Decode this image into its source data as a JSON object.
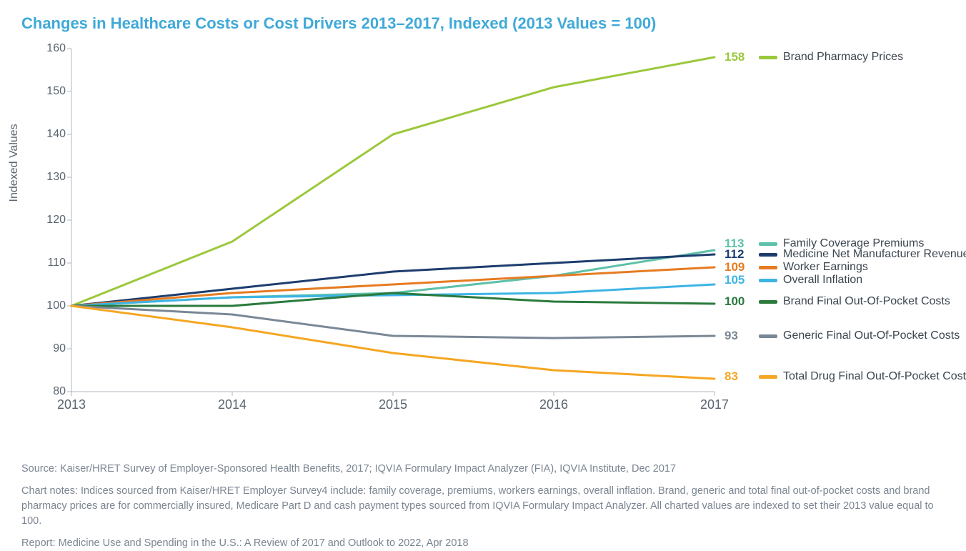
{
  "title": "Changes in Healthcare Costs or Cost Drivers 2013–2017, Indexed (2013 Values = 100)",
  "ylabel": "Indexed Values",
  "chart": {
    "type": "line",
    "background_color": "#ffffff",
    "axis_color": "#b0b7bf",
    "tick_font_color": "#5a6570",
    "title_font_color": "#3fa9d8",
    "title_fontsize": 22,
    "tick_fontsize": 16,
    "line_width": 3,
    "xlim": [
      2013,
      2017
    ],
    "ylim": [
      80,
      160
    ],
    "xticks": [
      2013,
      2014,
      2015,
      2016,
      2017
    ],
    "yticks": [
      80,
      90,
      100,
      110,
      120,
      130,
      140,
      150,
      160
    ],
    "legend_swatch_width": 26,
    "legend_swatch_height": 5,
    "series": [
      {
        "name": "Brand Pharmacy Prices",
        "color": "#9bc83c",
        "values": [
          100,
          115,
          140,
          151,
          158
        ],
        "end_label": "158",
        "legend_y": 158
      },
      {
        "name": "Family Coverage Premiums",
        "color": "#5ec0a9",
        "values": [
          100,
          102,
          103,
          107,
          113
        ],
        "end_label": "113",
        "legend_y": 114.5
      },
      {
        "name": "Medicine Net Manufacturer Revenues",
        "color": "#1d3d6e",
        "values": [
          100,
          104,
          108,
          110,
          112
        ],
        "end_label": "112",
        "legend_y": 112
      },
      {
        "name": "Worker Earnings",
        "color": "#e67b21",
        "values": [
          100,
          103,
          105,
          107,
          109
        ],
        "end_label": "109",
        "legend_y": 109
      },
      {
        "name": "Overall Inflation",
        "color": "#3db4e5",
        "values": [
          100,
          102,
          102.5,
          103,
          105
        ],
        "end_label": "105",
        "legend_y": 106
      },
      {
        "name": "Brand Final Out-Of-Pocket Costs",
        "color": "#2a7a3d",
        "values": [
          100,
          100,
          103,
          101,
          100.5
        ],
        "end_label": "100",
        "legend_y": 101
      },
      {
        "name": "Generic Final Out-Of-Pocket Costs",
        "color": "#7a8896",
        "values": [
          100,
          98,
          93,
          92.5,
          93
        ],
        "end_label": "93",
        "legend_y": 93
      },
      {
        "name": "Total Drug Final Out-Of-Pocket Costs",
        "color": "#f5a623",
        "values": [
          100,
          95,
          89,
          85,
          83
        ],
        "end_label": "83",
        "legend_y": 83.5
      }
    ]
  },
  "footer": {
    "source": "Source: Kaiser/HRET Survey of Employer-Sponsored Health Benefits, 2017; IQVIA Formulary Impact Analyzer (FIA), IQVIA Institute, Dec 2017",
    "notes": "Chart notes: Indices sourced from Kaiser/HRET Employer Survey4 include: family coverage, premiums, workers earnings, overall inflation. Brand, generic and total final out-of-pocket costs and brand pharmacy prices are for commercially insured, Medicare Part D and cash payment types sourced from IQVIA Formulary Impact Analyzer. All charted values are indexed to set their 2013 value equal to 100.",
    "report": "Report: Medicine Use and Spending in the U.S.: A Review of 2017 and Outlook to 2022, Apr 2018"
  }
}
